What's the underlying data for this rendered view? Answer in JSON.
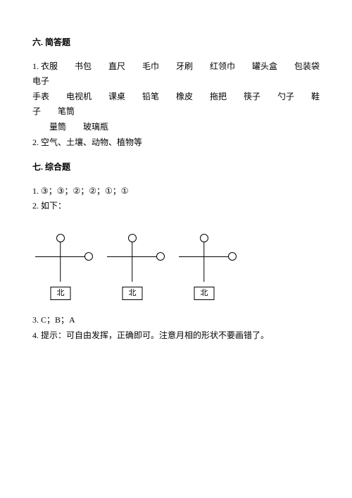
{
  "section6": {
    "heading": "六. 简答题",
    "q1_line1": "1. 衣服　　书包　　直尺　　毛巾　　牙刷　　红领巾　　罐头盒　　包装袋　　电子",
    "q1_line2": "手表　　电视机　　课桌　　铅笔　　橡皮　　拖把　　筷子　　勺子　　鞋子　　笔筒",
    "q1_line3": "量筒　　玻璃瓶",
    "q2": "2. 空气、土壤、动物、植物等"
  },
  "section7": {
    "heading": "七. 综合题",
    "q1": "1. ③；③；②；②；①；①",
    "q2": "2. 如下：",
    "box_label": "北",
    "q3": "3. C；B；A",
    "q4": "4. 提示：可自由发挥，正确即可。注意月相的形状不要画错了。"
  },
  "diagram": {
    "units": 3,
    "stroke_color": "#000000",
    "stroke_width": 1.5,
    "circle_diameter": 10,
    "box_border_width": 1.5
  }
}
